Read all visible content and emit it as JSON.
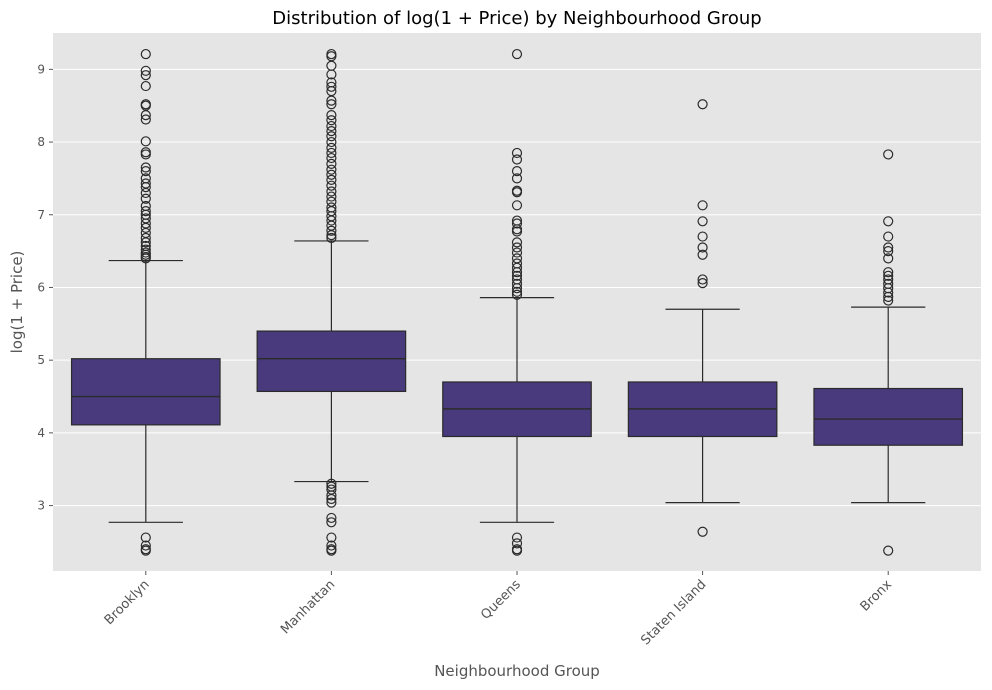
{
  "chart_data": {
    "type": "box",
    "title": "Distribution of log(1 + Price) by Neighbourhood Group",
    "xlabel": "Neighbourhood Group",
    "ylabel": "log(1 + Price)",
    "ylim": [
      2.1,
      9.5
    ],
    "yticks": [
      3,
      4,
      5,
      6,
      7,
      8,
      9
    ],
    "grid": true,
    "box_color": "#483a7c",
    "plot_background": "#e5e5e5",
    "categories": [
      "Brooklyn",
      "Manhattan",
      "Queens",
      "Staten Island",
      "Bronx"
    ],
    "boxes": [
      {
        "category": "Brooklyn",
        "whisker_low": 2.77,
        "q1": 4.11,
        "median": 4.5,
        "q3": 5.02,
        "whisker_high": 6.37,
        "outliers": [
          2.38,
          2.4,
          2.45,
          2.56,
          6.4,
          6.42,
          6.45,
          6.48,
          6.52,
          6.57,
          6.62,
          6.68,
          6.75,
          6.82,
          6.88,
          6.95,
          7.0,
          7.05,
          7.12,
          7.22,
          7.3,
          7.38,
          7.43,
          7.5,
          7.6,
          7.65,
          7.83,
          7.86,
          8.01,
          8.31,
          8.37,
          8.5,
          8.52,
          8.77,
          8.92,
          8.98,
          9.21
        ]
      },
      {
        "category": "Manhattan",
        "whisker_low": 3.33,
        "q1": 4.57,
        "median": 5.02,
        "q3": 5.4,
        "whisker_high": 6.64,
        "outliers": [
          2.38,
          2.4,
          2.45,
          2.56,
          2.77,
          2.83,
          3.04,
          3.09,
          3.14,
          3.22,
          3.26,
          3.3,
          6.68,
          6.72,
          6.78,
          6.85,
          6.92,
          6.98,
          7.05,
          7.1,
          7.18,
          7.25,
          7.32,
          7.4,
          7.48,
          7.55,
          7.62,
          7.7,
          7.78,
          7.85,
          7.92,
          8.0,
          8.08,
          8.15,
          8.22,
          8.3,
          8.37,
          8.52,
          8.57,
          8.7,
          8.76,
          8.82,
          8.93,
          9.05,
          9.18,
          9.21
        ]
      },
      {
        "category": "Queens",
        "whisker_low": 2.77,
        "q1": 3.95,
        "median": 4.33,
        "q3": 4.7,
        "whisker_high": 5.86,
        "outliers": [
          2.38,
          2.4,
          2.48,
          2.56,
          5.9,
          5.94,
          5.99,
          6.05,
          6.11,
          6.16,
          6.21,
          6.27,
          6.33,
          6.4,
          6.48,
          6.55,
          6.62,
          6.77,
          6.8,
          6.88,
          6.92,
          7.13,
          7.31,
          7.33,
          7.5,
          7.6,
          7.76,
          7.85,
          9.21
        ]
      },
      {
        "category": "Staten Island",
        "whisker_low": 3.04,
        "q1": 3.95,
        "median": 4.33,
        "q3": 4.7,
        "whisker_high": 5.7,
        "outliers": [
          2.64,
          6.06,
          6.11,
          6.45,
          6.55,
          6.7,
          6.91,
          7.13,
          8.52
        ]
      },
      {
        "category": "Bronx",
        "whisker_low": 3.04,
        "q1": 3.83,
        "median": 4.19,
        "q3": 4.61,
        "whisker_high": 5.73,
        "outliers": [
          2.38,
          5.82,
          5.87,
          5.93,
          5.99,
          6.05,
          6.11,
          6.16,
          6.21,
          6.4,
          6.5,
          6.55,
          6.7,
          6.91,
          7.83
        ]
      }
    ]
  }
}
